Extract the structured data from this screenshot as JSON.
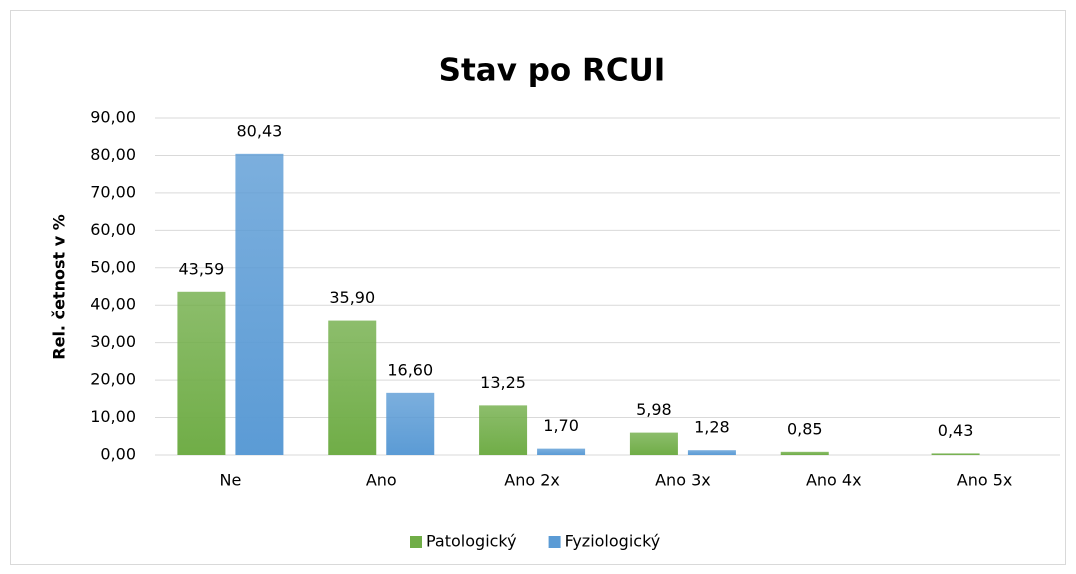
{
  "chart_data": {
    "type": "bar",
    "title": "Stav po RCUI",
    "y_label": "Rel. četnost v  %",
    "categories": [
      "Ne",
      "Ano",
      "Ano 2x",
      "Ano 3x",
      "Ano 4x",
      "Ano 5x"
    ],
    "series": [
      {
        "name": "Patologický",
        "color": "#70ad47",
        "values": [
          43.59,
          35.9,
          13.25,
          5.98,
          0.85,
          0.43
        ],
        "value_labels": [
          "43,59",
          "35,90",
          "13,25",
          "5,98",
          "0,85",
          "0,43"
        ]
      },
      {
        "name": "Fyziologický",
        "color": "#5b9bd5",
        "values": [
          80.43,
          16.6,
          1.7,
          1.28,
          null,
          null
        ],
        "value_labels": [
          "80,43",
          "16,60",
          "1,70",
          "1,28",
          null,
          null
        ]
      }
    ],
    "ylim": [
      0,
      90
    ],
    "yticks": [
      {
        "value": 0,
        "label": "0,00"
      },
      {
        "value": 10,
        "label": "10,00"
      },
      {
        "value": 20,
        "label": "20,00"
      },
      {
        "value": 30,
        "label": "30,00"
      },
      {
        "value": 40,
        "label": "40,00"
      },
      {
        "value": 50,
        "label": "50,00"
      },
      {
        "value": 60,
        "label": "60,00"
      },
      {
        "value": 70,
        "label": "70,00"
      },
      {
        "value": 80,
        "label": "80,00"
      },
      {
        "value": 90,
        "label": "90,00"
      }
    ],
    "grid": true,
    "legend": "bottom"
  }
}
